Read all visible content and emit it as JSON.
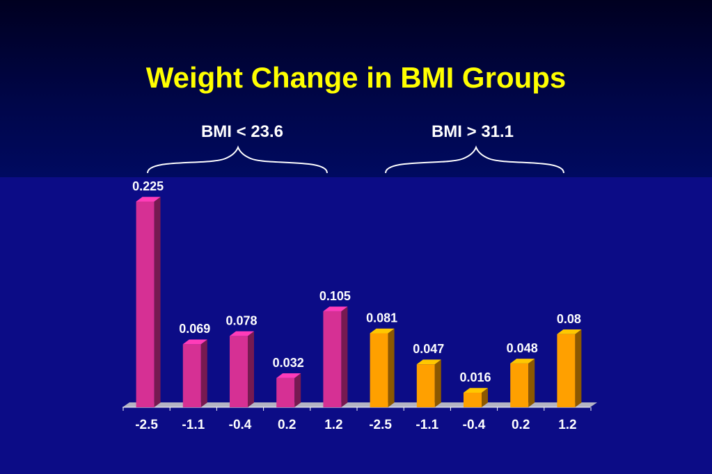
{
  "title": "Weight Change in BMI Groups",
  "groups": [
    {
      "label": "BMI < 23.6",
      "color": "#d63094"
    },
    {
      "label": "BMI > 31.1",
      "color": "#ffa000"
    }
  ],
  "chart_data": {
    "type": "bar",
    "title": "Weight Change in BMI Groups",
    "xlabel": "",
    "ylabel": "",
    "grid": false,
    "ylim": [
      0,
      0.225
    ],
    "categories": [
      "-2.5",
      "-1.1",
      "-0.4",
      "0.2",
      "1.2",
      "-2.5",
      "-1.1",
      "-0.4",
      "0.2",
      "1.2"
    ],
    "series": [
      {
        "name": "BMI < 23.6",
        "values": [
          0.225,
          0.069,
          0.078,
          0.032,
          0.105,
          null,
          null,
          null,
          null,
          null
        ]
      },
      {
        "name": "BMI > 31.1",
        "values": [
          null,
          null,
          null,
          null,
          null,
          0.081,
          0.047,
          0.016,
          0.048,
          0.08
        ]
      }
    ],
    "data_labels": [
      "0.225",
      "0.069",
      "0.078",
      "0.032",
      "0.105",
      "0.081",
      "0.047",
      "0.016",
      "0.048",
      "0.08"
    ]
  }
}
